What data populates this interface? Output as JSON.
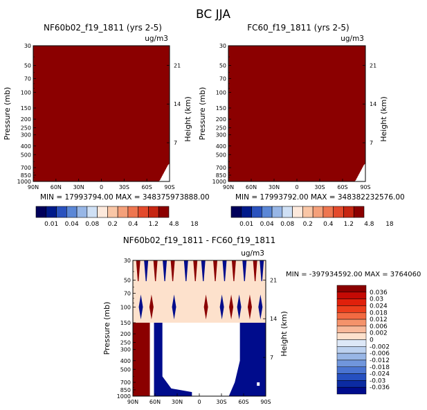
{
  "figure": {
    "title": "BC JJA"
  },
  "colors": {
    "dark_red": "#8b0000",
    "peach": "#fde1cc",
    "navy": "#000c8c",
    "white": "#ffffff"
  },
  "chart_data": [
    {
      "type": "heatmap",
      "title": "NF60b02_f19_1811 (yrs 2-5)",
      "units": "ug/m3",
      "ylabel": "Pressure (mb)",
      "ylabel_right": "Height (km)",
      "x_tick_labels": [
        "90N",
        "60N",
        "30N",
        "0",
        "30S",
        "60S",
        "90S"
      ],
      "y_tick_labels": [
        "30",
        "50",
        "70",
        "100",
        "150",
        "200",
        "250",
        "300",
        "400",
        "500",
        "700",
        "850",
        "1000"
      ],
      "y_right_tick_labels": [
        "21",
        "14",
        "7"
      ],
      "stats_text": "MIN = 17993794.00   MAX = 348375973888.00",
      "min": 17993794.0,
      "max": 348375973888.0,
      "field_description": "entire field above top contour level (18)"
    },
    {
      "type": "heatmap",
      "title": "FC60_f19_1811 (yrs 2-5)",
      "units": "ug/m3",
      "ylabel": "Pressure (mb)",
      "ylabel_right": "Height (km)",
      "x_tick_labels": [
        "90N",
        "60N",
        "30N",
        "0",
        "30S",
        "60S",
        "90S"
      ],
      "y_tick_labels": [
        "30",
        "50",
        "70",
        "100",
        "150",
        "200",
        "250",
        "300",
        "400",
        "500",
        "700",
        "850",
        "1000"
      ],
      "y_right_tick_labels": [
        "21",
        "14",
        "7"
      ],
      "stats_text": "MIN = 17993792.00   MAX = 348382232576.00",
      "min": 17993792.0,
      "max": 348382232576.0,
      "field_description": "entire field above top contour level (18)"
    },
    {
      "type": "heatmap",
      "title": "NF60b02_f19_1811 - FC60_f19_1811",
      "units": "ug/m3",
      "ylabel": "Pressure (mb)",
      "ylabel_right": "Height (km)",
      "x_tick_labels": [
        "90N",
        "60N",
        "30N",
        "0",
        "30S",
        "60S",
        "90S"
      ],
      "y_tick_labels": [
        "30",
        "50",
        "70",
        "100",
        "150",
        "200",
        "250",
        "300",
        "400",
        "500",
        "700",
        "850",
        "1000"
      ],
      "y_right_tick_labels": [
        "21",
        "14",
        "7"
      ],
      "stats_text": "MIN = -397934592.00   MAX = 3764060",
      "min": -397934592.0,
      "max": 3764060
    }
  ],
  "colorbar_top": {
    "labels": [
      "0.01",
      "0.04",
      "0.08",
      "0.2",
      "0.4",
      "1.2",
      "4.8",
      "18"
    ],
    "colors": [
      "#00005a",
      "#001a8a",
      "#2a52be",
      "#5b87d6",
      "#97b6e6",
      "#cfe0f5",
      "#fde9dc",
      "#f9c6a6",
      "#f4a07a",
      "#ee7650",
      "#e34a2c",
      "#c62612",
      "#8b0000"
    ]
  },
  "colorbar_diff": {
    "labels": [
      "0.036",
      "0.03",
      "0.024",
      "0.018",
      "0.012",
      "0.006",
      "0.002",
      "0",
      "-0.002",
      "-0.006",
      "-0.012",
      "-0.018",
      "-0.024",
      "-0.03",
      "-0.036"
    ],
    "colors": [
      "#8b0000",
      "#c40a04",
      "#e0200b",
      "#ec3e1c",
      "#f26a42",
      "#f5936b",
      "#f8b99a",
      "#fde1cc",
      "#dde8f7",
      "#bcd1ef",
      "#98b6e6",
      "#7096dc",
      "#4a74d1",
      "#2650c0",
      "#0b2ba2",
      "#000c8c"
    ]
  }
}
